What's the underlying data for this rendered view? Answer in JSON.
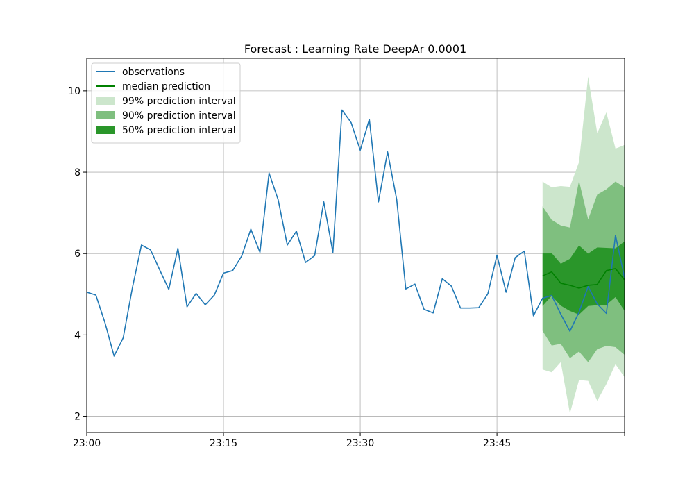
{
  "chart_data": {
    "type": "line",
    "title": "Forecast : Learning Rate DeepAr 0.0001",
    "xlabel": "",
    "ylabel": "",
    "x_ticks": [
      "23:00",
      "23:15",
      "23:30",
      "23:45"
    ],
    "y_ticks": [
      2,
      4,
      6,
      8,
      10
    ],
    "ylim": [
      1.6,
      10.8
    ],
    "xlim": [
      0,
      59
    ],
    "grid": true,
    "legend_position": "top-left",
    "colors": {
      "observations": "#1f77b4",
      "median": "#008000",
      "pi99": "#cce6cc",
      "pi90": "#7fbf7f",
      "pi50": "#2a962a"
    },
    "legend": [
      {
        "key": "observations",
        "label": "observations",
        "kind": "line"
      },
      {
        "key": "median",
        "label": "median prediction",
        "kind": "line"
      },
      {
        "key": "pi99",
        "label": "99% prediction interval",
        "kind": "patch"
      },
      {
        "key": "pi90",
        "label": "90% prediction interval",
        "kind": "patch"
      },
      {
        "key": "pi50",
        "label": "50% prediction interval",
        "kind": "patch"
      }
    ],
    "series": [
      {
        "name": "observations",
        "x": [
          0,
          1,
          2,
          3,
          4,
          5,
          6,
          7,
          8,
          9,
          10,
          11,
          12,
          13,
          14,
          15,
          16,
          17,
          18,
          19,
          20,
          21,
          22,
          23,
          24,
          25,
          26,
          27,
          28,
          29,
          30,
          31,
          32,
          33,
          34,
          35,
          36,
          37,
          38,
          39,
          40,
          41,
          42,
          43,
          44,
          45,
          46,
          47,
          48,
          49,
          50,
          51,
          52,
          53,
          54,
          55,
          56,
          57,
          58,
          59
        ],
        "values": [
          5.05,
          4.98,
          4.3,
          3.48,
          3.93,
          5.15,
          6.21,
          6.09,
          5.6,
          5.12,
          6.13,
          4.69,
          5.02,
          4.74,
          4.98,
          5.52,
          5.58,
          5.94,
          6.6,
          6.03,
          7.98,
          7.32,
          6.21,
          6.55,
          5.78,
          5.95,
          7.27,
          6.03,
          9.53,
          9.22,
          8.54,
          9.3,
          7.27,
          8.5,
          7.33,
          5.13,
          5.25,
          4.63,
          4.54,
          5.38,
          5.2,
          4.66,
          4.66,
          4.67,
          5.01,
          5.96,
          5.05,
          5.9,
          6.06,
          4.47,
          4.9,
          4.97,
          4.51,
          4.09,
          4.56,
          5.19,
          4.76,
          4.53,
          6.45,
          5.4
        ]
      },
      {
        "name": "median prediction",
        "x": [
          50,
          51,
          52,
          53,
          54,
          55,
          56,
          57,
          58,
          59
        ],
        "values": [
          5.45,
          5.55,
          5.27,
          5.22,
          5.15,
          5.22,
          5.24,
          5.58,
          5.63,
          5.35
        ]
      }
    ],
    "intervals": [
      {
        "name": "99% prediction interval",
        "x": [
          50,
          51,
          52,
          53,
          54,
          55,
          56,
          57,
          58,
          59
        ],
        "lower": [
          3.15,
          3.08,
          3.33,
          2.07,
          2.89,
          2.87,
          2.38,
          2.79,
          3.28,
          2.96
        ],
        "upper": [
          7.77,
          7.63,
          7.66,
          7.64,
          8.25,
          10.35,
          8.96,
          9.47,
          8.58,
          8.67
        ]
      },
      {
        "name": "90% prediction interval",
        "x": [
          50,
          51,
          52,
          53,
          54,
          55,
          56,
          57,
          58,
          59
        ],
        "lower": [
          4.1,
          3.74,
          3.78,
          3.43,
          3.59,
          3.33,
          3.65,
          3.73,
          3.7,
          3.51
        ],
        "upper": [
          7.16,
          6.83,
          6.69,
          6.64,
          7.79,
          6.84,
          7.45,
          7.58,
          7.77,
          7.63
        ]
      },
      {
        "name": "50% prediction interval",
        "x": [
          50,
          51,
          52,
          53,
          54,
          55,
          56,
          57,
          58,
          59
        ],
        "lower": [
          4.71,
          4.96,
          4.72,
          4.59,
          4.5,
          4.71,
          4.73,
          4.74,
          4.93,
          4.59
        ],
        "upper": [
          6.02,
          6.01,
          5.75,
          5.87,
          6.2,
          6.0,
          6.15,
          6.14,
          6.13,
          6.3
        ]
      }
    ]
  }
}
